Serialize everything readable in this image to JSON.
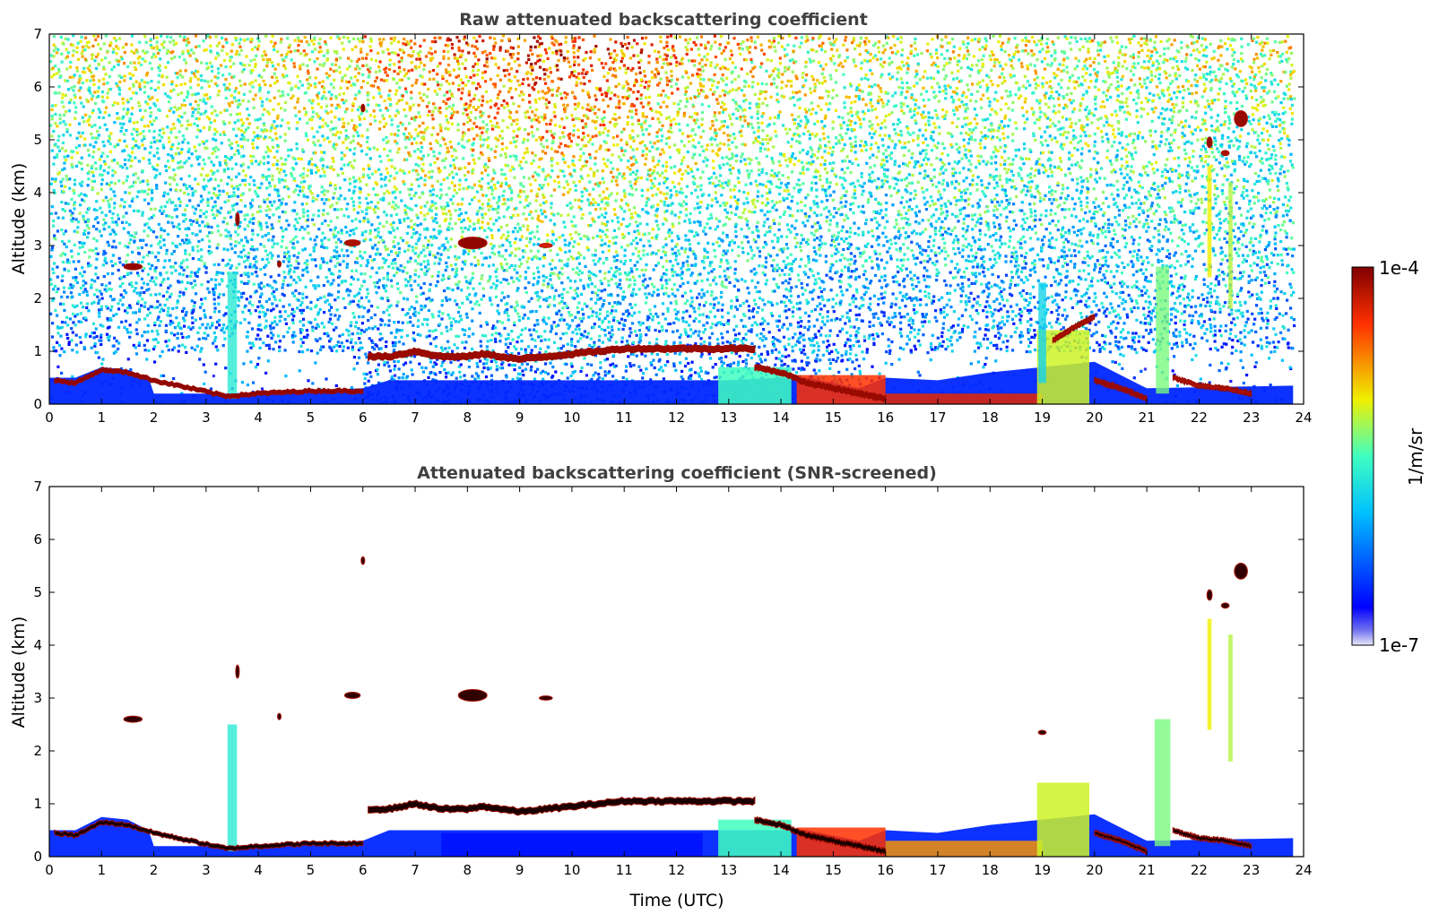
{
  "chart_data": [
    {
      "type": "heatmap",
      "title": "Raw attenuated backscattering coefficient",
      "xlabel": "",
      "ylabel": "Altitude (km)",
      "xlim": [
        0,
        24
      ],
      "ylim": [
        0,
        7
      ],
      "xticks": [
        0,
        1,
        2,
        3,
        4,
        5,
        6,
        7,
        8,
        9,
        10,
        11,
        12,
        13,
        14,
        15,
        16,
        17,
        18,
        19,
        20,
        21,
        22,
        23,
        24
      ],
      "yticks": [
        0,
        1,
        2,
        3,
        4,
        5,
        6,
        7
      ],
      "noise_background": true,
      "features": [
        {
          "kind": "boundary_layer",
          "x": [
            0,
            0.5,
            1,
            1.5,
            1.9,
            2,
            3.4,
            6,
            6.5,
            13,
            14,
            14.5,
            15.5,
            16,
            17,
            18,
            19,
            20,
            21,
            23.8
          ],
          "top_km": [
            0.5,
            0.5,
            0.7,
            0.65,
            0.5,
            0.2,
            0.2,
            0.3,
            0.45,
            0.45,
            0.5,
            0.5,
            0.3,
            0.5,
            0.45,
            0.6,
            0.7,
            0.8,
            0.3,
            0.35
          ],
          "level": 0.15
        },
        {
          "kind": "cloud_layer",
          "x": [
            6.1,
            6.5,
            7,
            7.5,
            8,
            8.3,
            9,
            10,
            10.5,
            11,
            12,
            13,
            13.5
          ],
          "alt_km": [
            0.9,
            0.9,
            1.0,
            0.9,
            0.9,
            0.95,
            0.85,
            0.95,
            1.0,
            1.05,
            1.05,
            1.05,
            1.05
          ],
          "thickness_km": 0.12,
          "level": 0.97
        },
        {
          "kind": "cloud_layer",
          "x": [
            0.1,
            0.5,
            1,
            1.5,
            2,
            3.4,
            4,
            5,
            6
          ],
          "alt_km": [
            0.45,
            0.4,
            0.65,
            0.6,
            0.45,
            0.15,
            0.2,
            0.25,
            0.25
          ],
          "thickness_km": 0.08,
          "level": 0.98
        },
        {
          "kind": "cloud_layer",
          "x": [
            13.5,
            14,
            14.5,
            15,
            15.5,
            16
          ],
          "alt_km": [
            0.7,
            0.6,
            0.4,
            0.3,
            0.2,
            0.1
          ],
          "thickness_km": 0.1,
          "level": 0.97
        },
        {
          "kind": "cloud_layer",
          "x": [
            20,
            20.5,
            21
          ],
          "alt_km": [
            0.45,
            0.3,
            0.1
          ],
          "thickness_km": 0.08,
          "level": 0.97
        },
        {
          "kind": "cloud_layer",
          "x": [
            21.5,
            22,
            22.5,
            23
          ],
          "alt_km": [
            0.5,
            0.35,
            0.3,
            0.2
          ],
          "thickness_km": 0.08,
          "level": 0.95
        },
        {
          "kind": "cloud_layer",
          "x": [
            19.2,
            19.6,
            20
          ],
          "alt_km": [
            1.2,
            1.45,
            1.65
          ],
          "thickness_km": 0.08,
          "level": 0.95
        },
        {
          "kind": "fill_region",
          "x0": 14.3,
          "x1": 16.0,
          "y0": 0.0,
          "y1": 0.55,
          "level": 0.85
        },
        {
          "kind": "fill_region",
          "x0": 16.0,
          "x1": 19.0,
          "y0": 0.0,
          "y1": 0.2,
          "level": 0.88
        },
        {
          "kind": "fill_region",
          "x0": 18.9,
          "x1": 19.9,
          "y0": 0.0,
          "y1": 1.4,
          "level": 0.62
        },
        {
          "kind": "fill_region",
          "x0": 12.8,
          "x1": 14.2,
          "y0": 0.0,
          "y1": 0.7,
          "level": 0.5
        },
        {
          "kind": "blob",
          "x": 1.6,
          "y": 2.6,
          "w": 0.35,
          "h": 0.12,
          "level": 0.98
        },
        {
          "kind": "blob",
          "x": 8.1,
          "y": 3.05,
          "w": 0.55,
          "h": 0.22,
          "level": 0.98
        },
        {
          "kind": "blob",
          "x": 5.8,
          "y": 3.05,
          "w": 0.3,
          "h": 0.12,
          "level": 0.95
        },
        {
          "kind": "blob",
          "x": 9.5,
          "y": 3.0,
          "w": 0.25,
          "h": 0.08,
          "level": 0.9
        },
        {
          "kind": "blob",
          "x": 6.0,
          "y": 5.6,
          "w": 0.05,
          "h": 0.15,
          "level": 0.98
        },
        {
          "kind": "blob",
          "x": 3.6,
          "y": 3.5,
          "w": 0.05,
          "h": 0.25,
          "level": 0.98
        },
        {
          "kind": "blob",
          "x": 4.4,
          "y": 2.65,
          "w": 0.05,
          "h": 0.12,
          "level": 0.98
        },
        {
          "kind": "blob",
          "x": 22.8,
          "y": 5.4,
          "w": 0.25,
          "h": 0.3,
          "level": 0.97
        },
        {
          "kind": "blob",
          "x": 22.2,
          "y": 4.95,
          "w": 0.1,
          "h": 0.2,
          "level": 0.97
        },
        {
          "kind": "blob",
          "x": 22.5,
          "y": 4.75,
          "w": 0.15,
          "h": 0.1,
          "level": 0.95
        },
        {
          "kind": "column",
          "x": 3.5,
          "w": 0.18,
          "y0": 0.1,
          "y1": 2.5,
          "level": 0.45
        },
        {
          "kind": "column",
          "x": 21.3,
          "w": 0.25,
          "y0": 0.2,
          "y1": 2.6,
          "level": 0.55
        },
        {
          "kind": "column",
          "x": 22.2,
          "w": 0.08,
          "y0": 2.4,
          "y1": 4.5,
          "level": 0.65
        },
        {
          "kind": "column",
          "x": 22.6,
          "w": 0.08,
          "y0": 1.8,
          "y1": 4.2,
          "level": 0.6
        },
        {
          "kind": "column",
          "x": 19.0,
          "w": 0.15,
          "y0": 0.4,
          "y1": 2.3,
          "level": 0.4
        }
      ]
    },
    {
      "type": "heatmap",
      "title": "Attenuated backscattering coefficient (SNR-screened)",
      "xlabel": "Time (UTC)",
      "ylabel": "Altitude (km)",
      "xlim": [
        0,
        24
      ],
      "ylim": [
        0,
        7
      ],
      "xticks": [
        0,
        1,
        2,
        3,
        4,
        5,
        6,
        7,
        8,
        9,
        10,
        11,
        12,
        13,
        14,
        15,
        16,
        17,
        18,
        19,
        20,
        21,
        22,
        23,
        24
      ],
      "yticks": [
        0,
        1,
        2,
        3,
        4,
        5,
        6,
        7
      ],
      "noise_background": false,
      "features": [
        {
          "kind": "boundary_layer",
          "x": [
            0,
            0.5,
            1,
            1.5,
            1.9,
            2,
            3.4,
            6,
            6.5,
            13,
            14,
            14.5,
            15.5,
            16,
            17,
            18,
            19,
            20,
            21,
            23.8
          ],
          "top_km": [
            0.5,
            0.5,
            0.75,
            0.7,
            0.5,
            0.2,
            0.2,
            0.3,
            0.5,
            0.5,
            0.5,
            0.5,
            0.3,
            0.5,
            0.45,
            0.6,
            0.7,
            0.8,
            0.3,
            0.35
          ],
          "level": 0.15
        },
        {
          "kind": "cloud_layer",
          "x": [
            6.1,
            6.5,
            7,
            7.5,
            8,
            8.3,
            9,
            10,
            10.5,
            11,
            12,
            13,
            13.5
          ],
          "alt_km": [
            0.9,
            0.9,
            1.0,
            0.9,
            0.9,
            0.95,
            0.85,
            0.95,
            1.0,
            1.05,
            1.05,
            1.05,
            1.05
          ],
          "thickness_km": 0.12,
          "level": 0.99
        },
        {
          "kind": "cloud_layer",
          "x": [
            0.1,
            0.5,
            1,
            1.5,
            2,
            3.4,
            4,
            5,
            6
          ],
          "alt_km": [
            0.45,
            0.4,
            0.65,
            0.6,
            0.45,
            0.15,
            0.2,
            0.25,
            0.25
          ],
          "thickness_km": 0.08,
          "level": 0.99
        },
        {
          "kind": "cloud_layer",
          "x": [
            13.5,
            14,
            14.5,
            15,
            15.5,
            16
          ],
          "alt_km": [
            0.7,
            0.6,
            0.4,
            0.3,
            0.2,
            0.1
          ],
          "thickness_km": 0.1,
          "level": 0.99
        },
        {
          "kind": "cloud_layer",
          "x": [
            20,
            20.5,
            21
          ],
          "alt_km": [
            0.45,
            0.3,
            0.1
          ],
          "thickness_km": 0.08,
          "level": 0.99
        },
        {
          "kind": "cloud_layer",
          "x": [
            21.5,
            22,
            22.5,
            23
          ],
          "alt_km": [
            0.5,
            0.35,
            0.3,
            0.2
          ],
          "thickness_km": 0.08,
          "level": 0.99
        },
        {
          "kind": "fill_region",
          "x0": 14.3,
          "x1": 16.0,
          "y0": 0.0,
          "y1": 0.55,
          "level": 0.85
        },
        {
          "kind": "fill_region",
          "x0": 16.0,
          "x1": 19.0,
          "y0": 0.0,
          "y1": 0.3,
          "level": 0.75
        },
        {
          "kind": "fill_region",
          "x0": 18.9,
          "x1": 19.9,
          "y0": 0.0,
          "y1": 1.4,
          "level": 0.62
        },
        {
          "kind": "fill_region",
          "x0": 12.8,
          "x1": 14.2,
          "y0": 0.0,
          "y1": 0.7,
          "level": 0.5
        },
        {
          "kind": "fill_region",
          "x0": 7.5,
          "x1": 12.5,
          "y0": 0.0,
          "y1": 0.45,
          "level": 0.12
        },
        {
          "kind": "blob",
          "x": 1.6,
          "y": 2.6,
          "w": 0.35,
          "h": 0.12,
          "level": 0.99
        },
        {
          "kind": "blob",
          "x": 8.1,
          "y": 3.05,
          "w": 0.55,
          "h": 0.22,
          "level": 0.99
        },
        {
          "kind": "blob",
          "x": 5.8,
          "y": 3.05,
          "w": 0.3,
          "h": 0.12,
          "level": 0.99
        },
        {
          "kind": "blob",
          "x": 9.5,
          "y": 3.0,
          "w": 0.25,
          "h": 0.08,
          "level": 0.99
        },
        {
          "kind": "blob",
          "x": 6.0,
          "y": 5.6,
          "w": 0.05,
          "h": 0.15,
          "level": 0.99
        },
        {
          "kind": "blob",
          "x": 3.6,
          "y": 3.5,
          "w": 0.05,
          "h": 0.25,
          "level": 0.99
        },
        {
          "kind": "blob",
          "x": 4.4,
          "y": 2.65,
          "w": 0.05,
          "h": 0.12,
          "level": 0.99
        },
        {
          "kind": "blob",
          "x": 22.8,
          "y": 5.4,
          "w": 0.25,
          "h": 0.3,
          "level": 0.99
        },
        {
          "kind": "blob",
          "x": 22.2,
          "y": 4.95,
          "w": 0.1,
          "h": 0.2,
          "level": 0.99
        },
        {
          "kind": "blob",
          "x": 22.5,
          "y": 4.75,
          "w": 0.15,
          "h": 0.1,
          "level": 0.99
        },
        {
          "kind": "blob",
          "x": 19.0,
          "y": 2.35,
          "w": 0.15,
          "h": 0.08,
          "level": 0.55
        },
        {
          "kind": "column",
          "x": 3.5,
          "w": 0.18,
          "y0": 0.1,
          "y1": 2.5,
          "level": 0.45
        },
        {
          "kind": "column",
          "x": 21.3,
          "w": 0.3,
          "y0": 0.2,
          "y1": 2.6,
          "level": 0.55
        },
        {
          "kind": "column",
          "x": 22.2,
          "w": 0.08,
          "y0": 2.4,
          "y1": 4.5,
          "level": 0.65
        },
        {
          "kind": "column",
          "x": 22.6,
          "w": 0.08,
          "y0": 1.8,
          "y1": 4.2,
          "level": 0.6
        }
      ]
    }
  ],
  "colorbar": {
    "label": "1/m/sr",
    "min_label": "1e-7",
    "max_label": "1e-4",
    "colormap": "jet",
    "scale": "log"
  }
}
